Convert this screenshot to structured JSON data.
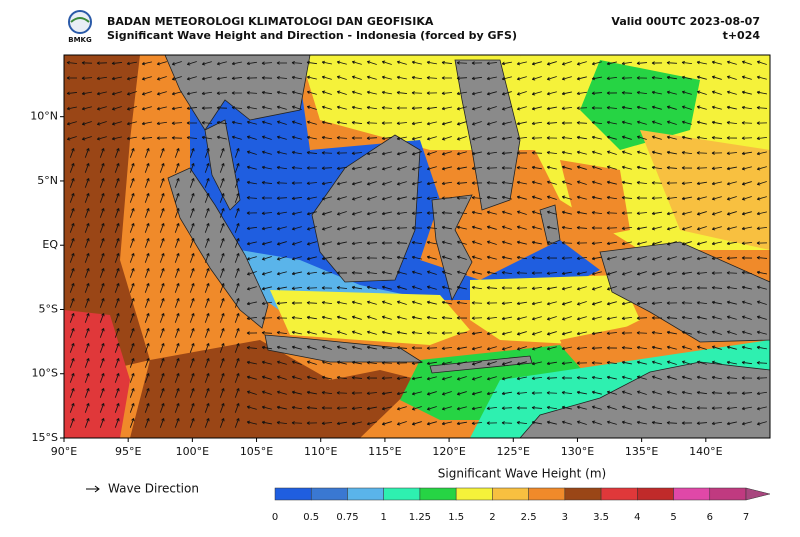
{
  "header": {
    "title": "BADAN METEOROLOGI KLIMATOLOGI DAN GEOFISIKA",
    "subtitle": "Significant Wave Height and Direction - Indonesia (forced by GFS)",
    "valid": "Valid 00UTC 2023-08-07",
    "lead_time": "t+024",
    "logo_text": "BMKG"
  },
  "map": {
    "lonlim": [
      90,
      145
    ],
    "latlim": [
      -15,
      14.8
    ],
    "land_color": "#8a8a8a",
    "lon_ticks": [
      {
        "value": 90,
        "label": "90°E"
      },
      {
        "value": 95,
        "label": "95°E"
      },
      {
        "value": 100,
        "label": "100°E"
      },
      {
        "value": 105,
        "label": "105°E"
      },
      {
        "value": 110,
        "label": "110°E"
      },
      {
        "value": 115,
        "label": "115°E"
      },
      {
        "value": 120,
        "label": "120°E"
      },
      {
        "value": 125,
        "label": "125°E"
      },
      {
        "value": 130,
        "label": "130°E"
      },
      {
        "value": 135,
        "label": "135°E"
      },
      {
        "value": 140,
        "label": "140°E"
      }
    ],
    "lat_ticks": [
      {
        "value": 10,
        "label": "10°N"
      },
      {
        "value": 5,
        "label": "5°N"
      },
      {
        "value": 0,
        "label": "EQ"
      },
      {
        "value": -5,
        "label": "5°S"
      },
      {
        "value": -10,
        "label": "10°S"
      },
      {
        "value": -15,
        "label": "15°S"
      }
    ]
  },
  "legend": {
    "arrow_label": "Wave Direction"
  },
  "colorbar": {
    "title": "Significant Wave Height (m)",
    "levels": [
      0,
      0.5,
      0.75,
      1,
      1.25,
      1.5,
      2,
      2.5,
      3,
      3.5,
      4,
      5,
      6,
      7
    ],
    "colors": [
      "#1f5ee0",
      "#3a78d2",
      "#5ab4ea",
      "#2ef0b0",
      "#26d444",
      "#f5f23a",
      "#f8c040",
      "#f08a2a",
      "#9a4616",
      "#e0383a",
      "#c02a2a",
      "#e048a8",
      "#c03a80"
    ],
    "extend_color": "#a8467e"
  }
}
